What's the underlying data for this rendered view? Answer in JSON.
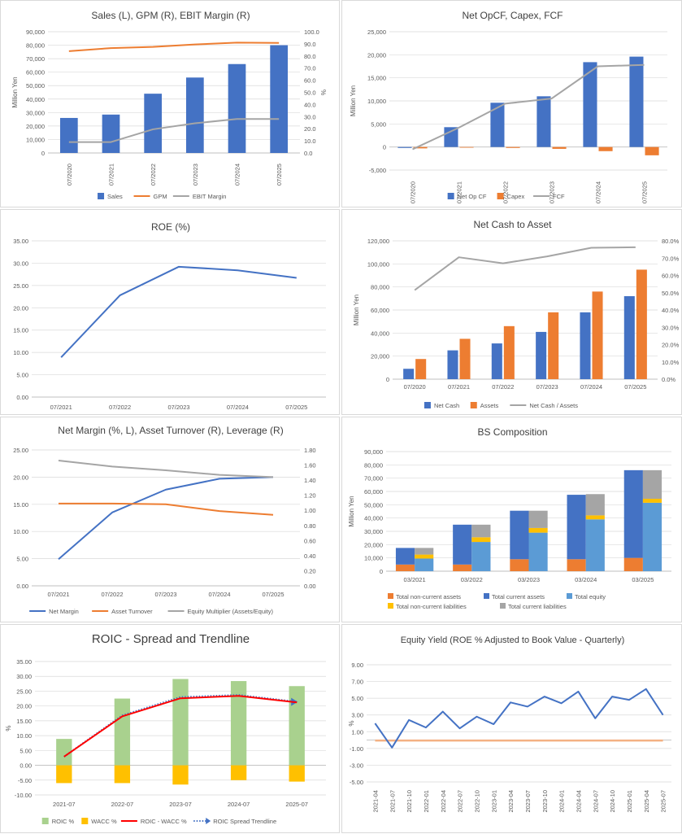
{
  "colors": {
    "blue": "#4472C4",
    "orange": "#ED7D31",
    "gray": "#A5A5A5",
    "gold": "#FFC000",
    "lightblue": "#5B9BD5",
    "green": "#A9D18E",
    "red": "#FF0000",
    "grid": "#D9D9D9"
  },
  "chart_data": [
    {
      "id": "sales",
      "type": "bar",
      "title": "Sales (L), GPM (R), EBIT Margin (R)",
      "ylabel": "Million Yen",
      "y2label": "%",
      "categories": [
        "07/2020",
        "07/2021",
        "07/2022",
        "07/2023",
        "07/2024",
        "07/2025"
      ],
      "ylim": [
        0,
        90000
      ],
      "yticks": [
        "0",
        "10,000",
        "20,000",
        "30,000",
        "40,000",
        "50,000",
        "60,000",
        "70,000",
        "80,000",
        "90,000"
      ],
      "y2lim": [
        0,
        100
      ],
      "y2ticks": [
        "0.0",
        "10.0",
        "20.0",
        "30.0",
        "40.0",
        "50.0",
        "60.0",
        "70.0",
        "80.0",
        "90.0",
        "100.0"
      ],
      "series": [
        {
          "name": "Sales",
          "kind": "bar",
          "axis": "left",
          "color": "#4472C4",
          "values": [
            26000,
            28500,
            44000,
            56000,
            66000,
            80000
          ]
        },
        {
          "name": "GPM",
          "kind": "line",
          "axis": "right",
          "color": "#ED7D31",
          "values": [
            84.0,
            86.5,
            87.5,
            89.5,
            91.0,
            90.8
          ]
        },
        {
          "name": "EBIT Margin",
          "kind": "line",
          "axis": "right",
          "color": "#A5A5A5",
          "values": [
            9.0,
            9.0,
            19.5,
            24.5,
            28.0,
            28.0
          ]
        }
      ],
      "grid": true,
      "legend": "bottom"
    },
    {
      "id": "cf",
      "type": "bar",
      "title": "Net OpCF, Capex, FCF",
      "ylabel": "Million Yen",
      "categories": [
        "07/2020",
        "07/2021",
        "07/2022",
        "07/2023",
        "07/2024",
        "07/2025"
      ],
      "ylim": [
        -5000,
        25000
      ],
      "yticks": [
        "-5,000",
        "0",
        "5,000",
        "10,000",
        "15,000",
        "20,000",
        "25,000"
      ],
      "series": [
        {
          "name": "Net Op CF",
          "kind": "bar",
          "axis": "left",
          "color": "#4472C4",
          "values": [
            -200,
            4300,
            9600,
            11000,
            18400,
            19600
          ]
        },
        {
          "name": "Capex",
          "kind": "bar",
          "axis": "left",
          "color": "#ED7D31",
          "values": [
            -300,
            -50,
            -200,
            -400,
            -900,
            -1800
          ]
        },
        {
          "name": "FCF",
          "kind": "line",
          "axis": "left",
          "color": "#A5A5A5",
          "values": [
            -500,
            4200,
            9400,
            10500,
            17500,
            17800
          ]
        }
      ],
      "grid": true,
      "legend": "bottom"
    },
    {
      "id": "roe",
      "type": "line",
      "title": "ROE (%)",
      "categories": [
        "07/2021",
        "07/2022",
        "07/2023",
        "07/2024",
        "07/2025"
      ],
      "ylim": [
        0,
        35
      ],
      "yticks": [
        "0.00",
        "5.00",
        "10.00",
        "15.00",
        "20.00",
        "25.00",
        "30.00",
        "35.00"
      ],
      "series": [
        {
          "kind": "line",
          "axis": "left",
          "color": "#4472C4",
          "values": [
            8.9,
            22.8,
            29.2,
            28.4,
            26.7
          ]
        }
      ],
      "grid": true
    },
    {
      "id": "netcash",
      "type": "bar",
      "title": "Net Cash to Asset",
      "ylabel": "Million Yen",
      "categories": [
        "07/2020",
        "07/2021",
        "07/2022",
        "07/2023",
        "07/2024",
        "07/2025"
      ],
      "ylim": [
        0,
        120000
      ],
      "yticks": [
        "0",
        "20,000",
        "40,000",
        "60,000",
        "80,000",
        "100,000",
        "120,000"
      ],
      "y2lim": [
        0,
        80
      ],
      "y2ticks": [
        "0.0%",
        "10.0%",
        "20.0%",
        "30.0%",
        "40.0%",
        "50.0%",
        "60.0%",
        "70.0%",
        "80.0%"
      ],
      "series": [
        {
          "name": "Net Cash",
          "kind": "bar",
          "axis": "left",
          "color": "#4472C4",
          "values": [
            9000,
            25000,
            31000,
            41000,
            58000,
            72000
          ]
        },
        {
          "name": "Assets",
          "kind": "bar",
          "axis": "left",
          "color": "#ED7D31",
          "values": [
            17500,
            35000,
            46000,
            58000,
            76000,
            95000
          ]
        },
        {
          "name": "Net Cash / Assets",
          "kind": "line",
          "axis": "right",
          "color": "#A5A5A5",
          "values": [
            51.5,
            70.5,
            67.0,
            71.0,
            76.0,
            76.3
          ]
        }
      ],
      "grid": true,
      "legend": "bottom"
    },
    {
      "id": "dupont",
      "type": "line",
      "title": "Net Margin (%, L), Asset Turnover (R), Leverage (R)",
      "categories": [
        "07/2021",
        "07/2022",
        "07/2023",
        "07/2024",
        "07/2025"
      ],
      "ylim": [
        0,
        25
      ],
      "yticks": [
        "0.00",
        "5.00",
        "10.00",
        "15.00",
        "20.00",
        "25.00"
      ],
      "y2lim": [
        0,
        1.8
      ],
      "y2ticks": [
        "0.00",
        "0.20",
        "0.40",
        "0.60",
        "0.80",
        "1.00",
        "1.20",
        "1.40",
        "1.60",
        "1.80"
      ],
      "series": [
        {
          "name": "Net Margin",
          "kind": "line",
          "axis": "left",
          "color": "#4472C4",
          "values": [
            4.9,
            13.5,
            17.7,
            19.7,
            20.0
          ]
        },
        {
          "name": "Asset Turnover",
          "kind": "line",
          "axis": "right",
          "color": "#ED7D31",
          "values": [
            1.09,
            1.09,
            1.08,
            0.99,
            0.94
          ]
        },
        {
          "name": "Equity Multiplier (Assets/Equity)",
          "kind": "line",
          "axis": "right",
          "color": "#A5A5A5",
          "values": [
            1.66,
            1.58,
            1.53,
            1.47,
            1.44
          ]
        }
      ],
      "grid": true,
      "legend": "bottom"
    },
    {
      "id": "bs",
      "type": "bar",
      "title": "BS Composition",
      "ylabel": "Million Yen",
      "categories": [
        "03/2021",
        "03/2022",
        "03/2023",
        "03/2024",
        "03/2025"
      ],
      "ylim": [
        0,
        90000
      ],
      "yticks": [
        "0",
        "10,000",
        "20,000",
        "30,000",
        "40,000",
        "50,000",
        "60,000",
        "70,000",
        "80,000",
        "90,000"
      ],
      "series": [
        {
          "name": "Total non-current assets",
          "stack": "assets",
          "color": "#ED7D31",
          "values": [
            5000,
            5000,
            9000,
            9000,
            10000
          ]
        },
        {
          "name": "Total current assets",
          "stack": "assets",
          "color": "#4472C4",
          "values": [
            12500,
            30000,
            36500,
            48500,
            66000
          ]
        },
        {
          "name": "Total equity",
          "stack": "liab",
          "color": "#5B9BD5",
          "values": [
            9500,
            22000,
            29000,
            39000,
            51500
          ]
        },
        {
          "name": "Total non-current liabilities",
          "stack": "liab",
          "color": "#FFC000",
          "values": [
            3000,
            3500,
            3500,
            3000,
            3000
          ]
        },
        {
          "name": "Total current liabilities",
          "stack": "liab",
          "color": "#A5A5A5",
          "values": [
            5000,
            9500,
            13000,
            16000,
            21500
          ]
        }
      ],
      "grid": true,
      "legend": "bottom"
    },
    {
      "id": "roic",
      "type": "bar",
      "title": "ROIC - Spread and Trendline",
      "ylabel": "%",
      "categories": [
        "2021-07",
        "2022-07",
        "2023-07",
        "2024-07",
        "2025-07"
      ],
      "ylim": [
        -10,
        35
      ],
      "yticks": [
        "-10.00",
        "-5.00",
        "0.00",
        "5.00",
        "10.00",
        "15.00",
        "20.00",
        "25.00",
        "30.00",
        "35.00"
      ],
      "series": [
        {
          "name": "ROIC %",
          "kind": "bar",
          "color": "#A9D18E",
          "values": [
            8.9,
            22.5,
            29.1,
            28.4,
            26.7
          ]
        },
        {
          "name": "WACC %",
          "kind": "bar",
          "color": "#FFC000",
          "values": [
            -6.0,
            -6.0,
            -6.5,
            -5.0,
            -5.5
          ]
        },
        {
          "name": "ROIC - WACC %",
          "kind": "line",
          "color": "#FF0000",
          "values": [
            2.9,
            16.5,
            22.6,
            23.4,
            21.2
          ]
        },
        {
          "name": "ROIC Spread Trendline",
          "kind": "trend",
          "color": "#4472C4",
          "values": [
            2.9,
            16.8,
            23.0,
            23.7,
            21.4
          ]
        }
      ],
      "grid": true,
      "legend": "bottom"
    },
    {
      "id": "ey",
      "type": "line",
      "title": "Equity Yield (ROE % Adjusted to Book Value - Quarterly)",
      "ylabel": "%",
      "categories": [
        "2021-04",
        "2021-07",
        "2021-10",
        "2022-01",
        "2022-04",
        "2022-07",
        "2022-10",
        "2023-01",
        "2023-04",
        "2023-07",
        "2023-10",
        "2024-01",
        "2024-04",
        "2024-07",
        "2024-10",
        "2025-01",
        "2025-04",
        "2025-07"
      ],
      "ylim": [
        -5,
        9
      ],
      "yticks": [
        "-5.00",
        "-3.00",
        "-1.00",
        "1.00",
        "3.00",
        "5.00",
        "7.00",
        "9.00"
      ],
      "series": [
        {
          "kind": "line",
          "color": "#4472C4",
          "values": [
            2.0,
            -0.9,
            2.4,
            1.5,
            3.4,
            1.4,
            2.8,
            1.9,
            4.5,
            4.0,
            5.2,
            4.4,
            5.8,
            2.6,
            5.2,
            4.8,
            6.1,
            3.0
          ]
        },
        {
          "kind": "line",
          "color": "#F4B183",
          "values": [
            -0.05,
            -0.05,
            -0.05,
            -0.05,
            -0.05,
            -0.05,
            -0.05,
            -0.05,
            -0.05,
            -0.05,
            -0.05,
            -0.05,
            -0.05,
            -0.05,
            -0.05,
            -0.05,
            -0.05,
            -0.05
          ]
        }
      ],
      "grid": true
    }
  ]
}
